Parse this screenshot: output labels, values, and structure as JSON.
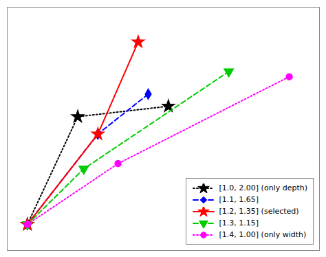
{
  "chart_data": {
    "type": "line",
    "xlim": [
      0.0,
      15.5
    ],
    "ylim": [
      -0.5,
      13.5
    ],
    "grid": false,
    "tick_labels": false,
    "legend": "lower right",
    "series": [
      {
        "name": "[1.0, 2.00] (only depth)",
        "color": "#000000",
        "line_style": "dotted",
        "marker": "star",
        "x": [
          1.0,
          3.5,
          8.0
        ],
        "values": [
          1.0,
          7.2,
          7.8
        ]
      },
      {
        "name": "[1.1, 1.65]",
        "color": "#0000ff",
        "line_style": "dashed",
        "marker": "diamond",
        "x": [
          1.0,
          4.5,
          7.0
        ],
        "values": [
          1.0,
          6.2,
          8.5
        ]
      },
      {
        "name": "[1.2, 1.35] (selected)",
        "color": "#ff0000",
        "line_style": "solid",
        "marker": "star",
        "x": [
          1.0,
          4.5,
          6.5
        ],
        "values": [
          1.0,
          6.2,
          11.5
        ]
      },
      {
        "name": "[1.3, 1.15]",
        "color": "#00cc00",
        "line_style": "dashed",
        "marker": "triangle-down",
        "x": [
          1.0,
          3.8,
          11.0
        ],
        "values": [
          1.0,
          4.2,
          9.8
        ]
      },
      {
        "name": "[1.4, 1.00] (only width)",
        "color": "#ff00ff",
        "line_style": "dotted",
        "marker": "circle",
        "x": [
          1.0,
          5.5,
          14.0
        ],
        "values": [
          1.0,
          4.5,
          9.5
        ]
      }
    ]
  }
}
